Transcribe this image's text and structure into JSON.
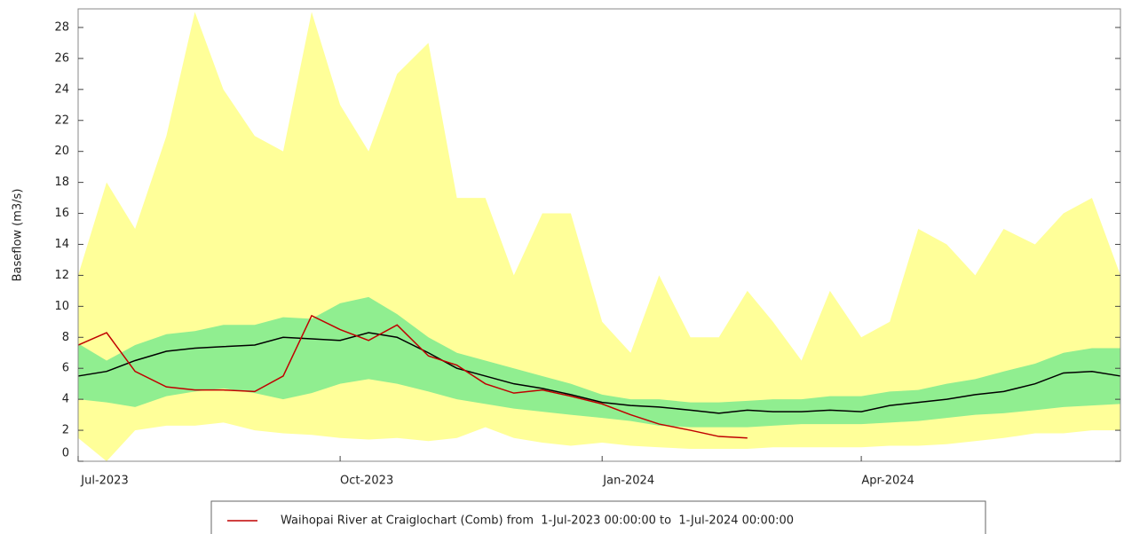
{
  "chart_data": {
    "type": "band-line",
    "ylabel": "Baseflow (m3/s)",
    "xlim": [
      "2023-07-01",
      "2024-07-01"
    ],
    "xticks": [
      {
        "value": "2023-07-01",
        "label": "Jul-2023"
      },
      {
        "value": "2023-10-01",
        "label": "Oct-2023"
      },
      {
        "value": "2024-01-01",
        "label": "Jan-2024"
      },
      {
        "value": "2024-04-01",
        "label": "Apr-2024"
      }
    ],
    "ylim": [
      0,
      29.2
    ],
    "yticks": [
      0,
      2,
      4,
      6,
      8,
      10,
      12,
      14,
      16,
      18,
      20,
      22,
      24,
      26,
      28
    ],
    "grid": false,
    "x": [
      "2023-07-01",
      "2023-07-11",
      "2023-07-21",
      "2023-08-01",
      "2023-08-11",
      "2023-08-21",
      "2023-09-01",
      "2023-09-11",
      "2023-09-21",
      "2023-10-01",
      "2023-10-11",
      "2023-10-21",
      "2023-11-01",
      "2023-11-11",
      "2023-11-21",
      "2023-12-01",
      "2023-12-11",
      "2023-12-21",
      "2024-01-01",
      "2024-01-11",
      "2024-01-21",
      "2024-02-01",
      "2024-02-11",
      "2024-02-21",
      "2024-03-01",
      "2024-03-11",
      "2024-03-21",
      "2024-04-01",
      "2024-04-11",
      "2024-04-21",
      "2024-05-01",
      "2024-05-11",
      "2024-05-21",
      "2024-06-01",
      "2024-06-11",
      "2024-06-21",
      "2024-07-01"
    ],
    "bands": [
      {
        "color": "#ffff99",
        "lower": [
          1.5,
          0,
          2,
          2.3,
          2.3,
          2.5,
          2,
          1.8,
          1.7,
          1.5,
          1.4,
          1.5,
          1.3,
          1.5,
          2.2,
          1.5,
          1.2,
          1,
          1.2,
          1,
          0.9,
          0.8,
          0.8,
          0.8,
          0.9,
          0.9,
          0.9,
          0.9,
          1,
          1,
          1.1,
          1.3,
          1.5,
          1.8,
          1.8,
          2,
          2
        ],
        "upper": [
          12,
          18,
          15,
          21,
          29,
          24,
          21,
          20,
          29,
          23,
          20,
          25,
          27,
          17,
          17,
          12,
          16,
          16,
          9,
          7,
          12,
          8,
          8,
          11,
          9,
          6.5,
          11,
          8,
          9,
          15,
          14,
          12,
          15,
          14,
          16,
          17,
          12
        ]
      },
      {
        "color": "#90ee90",
        "lower": [
          4,
          3.8,
          3.5,
          4.2,
          4.5,
          4.7,
          4.4,
          4,
          4.4,
          5,
          5.3,
          5,
          4.5,
          4,
          3.7,
          3.4,
          3.2,
          3,
          2.8,
          2.6,
          2.3,
          2.2,
          2.2,
          2.2,
          2.3,
          2.4,
          2.4,
          2.4,
          2.5,
          2.6,
          2.8,
          3,
          3.1,
          3.3,
          3.5,
          3.6,
          3.7
        ],
        "upper": [
          7.6,
          6.5,
          7.5,
          8.2,
          8.4,
          8.8,
          8.8,
          9.3,
          9.2,
          10.2,
          10.6,
          9.5,
          8,
          7,
          6.5,
          6,
          5.5,
          5,
          4.3,
          4,
          4,
          3.8,
          3.8,
          3.9,
          4,
          4,
          4.2,
          4.2,
          4.5,
          4.6,
          5,
          5.3,
          5.8,
          6.3,
          7,
          7.3,
          7.3
        ]
      }
    ],
    "series": [
      {
        "color": "#000000",
        "values": [
          5.5,
          5.8,
          6.5,
          7.1,
          7.3,
          7.4,
          7.5,
          8,
          7.9,
          7.8,
          8.3,
          8,
          7,
          6,
          5.5,
          5,
          4.7,
          4.3,
          3.8,
          3.6,
          3.5,
          3.3,
          3.1,
          3.3,
          3.2,
          3.2,
          3.3,
          3.2,
          3.6,
          3.8,
          4,
          4.3,
          4.5,
          5,
          5.7,
          5.8,
          5.5
        ]
      },
      {
        "name": "Waihopai River at Craiglochart (Comb) from  1-Jul-2023 00:00:00 to  1-Jul-2024 00:00:00",
        "color": "#c00000",
        "values": [
          7.5,
          8.3,
          5.8,
          4.8,
          4.6,
          4.6,
          4.5,
          5.5,
          9.4,
          8.5,
          7.8,
          8.8,
          6.8,
          6.2,
          5,
          4.4,
          4.6,
          4.2,
          3.7,
          3,
          2.4,
          2,
          1.6,
          1.5,
          null,
          null,
          null,
          null,
          null,
          null,
          null,
          null,
          null,
          null,
          null,
          null,
          null
        ]
      }
    ]
  }
}
